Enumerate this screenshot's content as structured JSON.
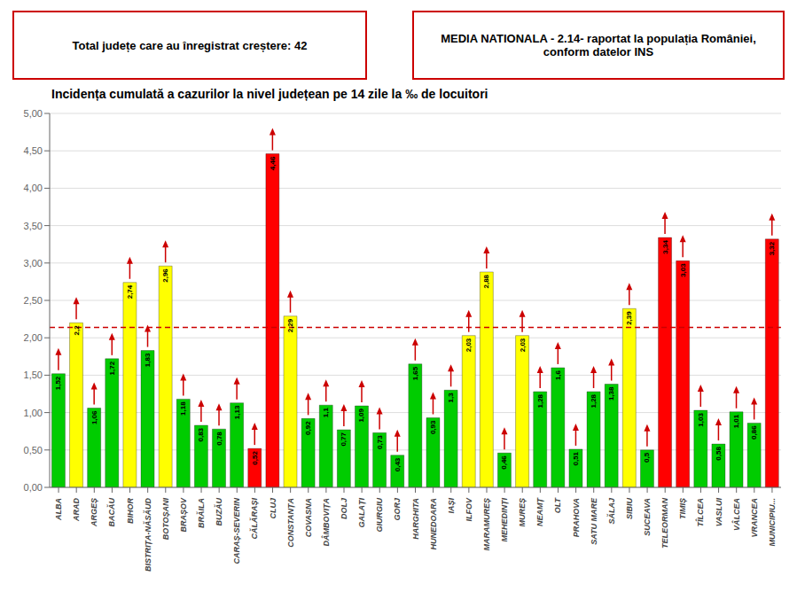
{
  "chart_data": {
    "type": "bar",
    "title": "Incidența cumulată a cazurilor la nivel județean pe 14 zile la ‰ de locuitori",
    "annotations": [
      {
        "text": "Total județe care au înregistrat creștere: 42",
        "color": "#cc0000"
      },
      {
        "text": "MEDIA NATIONALA - 2.14-  raportat la populația României,\nconform datelor INS",
        "color": "#cc0000"
      }
    ],
    "categories": [
      "ALBA",
      "ARAD",
      "ARGEȘ",
      "BACĂU",
      "BIHOR",
      "BISTRIȚA-NĂSĂUD",
      "BOTOȘANI",
      "BRAȘOV",
      "BRĂILA",
      "BUZĂU",
      "CARAȘ-SEVERIN",
      "CĂLĂRAȘI",
      "CLUJ",
      "CONSTANȚA",
      "COVASNA",
      "DÂMBOVIȚA",
      "DOLJ",
      "GALAȚI",
      "GIURGIU",
      "GORJ",
      "HARGHITA",
      "HUNEDOARA",
      "IAȘI",
      "ILFOV",
      "MARAMUREȘ",
      "MEHEDINȚI",
      "MUREȘ",
      "NEAMȚ",
      "OLT",
      "PRAHOVA",
      "SATU MARE",
      "SĂLAJ",
      "SIBIU",
      "SUCEAVA",
      "TELEORMAN",
      "TIMIȘ",
      "TÎLCEA",
      "VASLUI",
      "VÂLCEA",
      "VRANCEA",
      "MUNICIPIU..."
    ],
    "values": [
      1.52,
      2.2,
      1.06,
      1.72,
      2.74,
      1.83,
      2.96,
      1.18,
      0.83,
      0.78,
      1.13,
      0.52,
      4.46,
      2.29,
      0.92,
      1.1,
      0.77,
      1.09,
      0.73,
      0.43,
      1.65,
      0.93,
      1.3,
      2.03,
      2.88,
      0.46,
      2.03,
      1.28,
      1.6,
      0.51,
      1.28,
      1.38,
      2.39,
      0.5,
      3.34,
      3.03,
      1.03,
      0.58,
      1.01,
      0.86,
      3.32
    ],
    "value_labels": [
      "1,52",
      "2,2",
      "1,06",
      "1,72",
      "2,74",
      "1,83",
      "2,96",
      "1,18",
      "0,83",
      "0,78",
      "1,13",
      "0,52",
      "4,46",
      "2,29",
      "0,92",
      "1,1",
      "0,77",
      "1,09",
      "0,73",
      "0,43",
      "1,65",
      "0,93",
      "1,3",
      "2,03",
      "2,88",
      "0,46",
      "2,03",
      "1,28",
      "1,6",
      "0,51",
      "1,28",
      "1,38",
      "2,39",
      "0,5",
      "3,34",
      "3,03",
      "1,03",
      "0,58",
      "1,01",
      "0,86",
      "3,32"
    ],
    "data_labels": true,
    "colors": [
      "#00cc00",
      "#ffff00",
      "#00cc00",
      "#00cc00",
      "#ffff00",
      "#00cc00",
      "#ffff00",
      "#00cc00",
      "#00cc00",
      "#00cc00",
      "#00cc00",
      "#ff0000",
      "#ff0000",
      "#ffff00",
      "#00cc00",
      "#00cc00",
      "#00cc00",
      "#00cc00",
      "#00cc00",
      "#00cc00",
      "#00cc00",
      "#00cc00",
      "#00cc00",
      "#ffff00",
      "#ffff00",
      "#00cc00",
      "#ffff00",
      "#00cc00",
      "#00cc00",
      "#00cc00",
      "#00cc00",
      "#00cc00",
      "#ffff00",
      "#00cc00",
      "#ff0000",
      "#ff0000",
      "#00cc00",
      "#00cc00",
      "#00cc00",
      "#00cc00",
      "#ff0000"
    ],
    "marker": "arrow",
    "reference_lines": [
      {
        "value": 2.14,
        "color": "#cc0000",
        "line_style": "dashed"
      }
    ],
    "ylim": [
      0,
      5.0
    ],
    "yticks": [
      {
        "value": 0.0,
        "label": "0,00"
      },
      {
        "value": 0.5,
        "label": "0,50"
      },
      {
        "value": 1.0,
        "label": "1,00"
      },
      {
        "value": 1.5,
        "label": "1,50"
      },
      {
        "value": 2.0,
        "label": "2,00"
      },
      {
        "value": 2.5,
        "label": "2,50"
      },
      {
        "value": 3.0,
        "label": "3,00"
      },
      {
        "value": 3.5,
        "label": "3,50"
      },
      {
        "value": 4.0,
        "label": "4,00"
      },
      {
        "value": 4.5,
        "label": "4,50"
      },
      {
        "value": 5.0,
        "label": "5,00"
      }
    ],
    "grid": true
  }
}
